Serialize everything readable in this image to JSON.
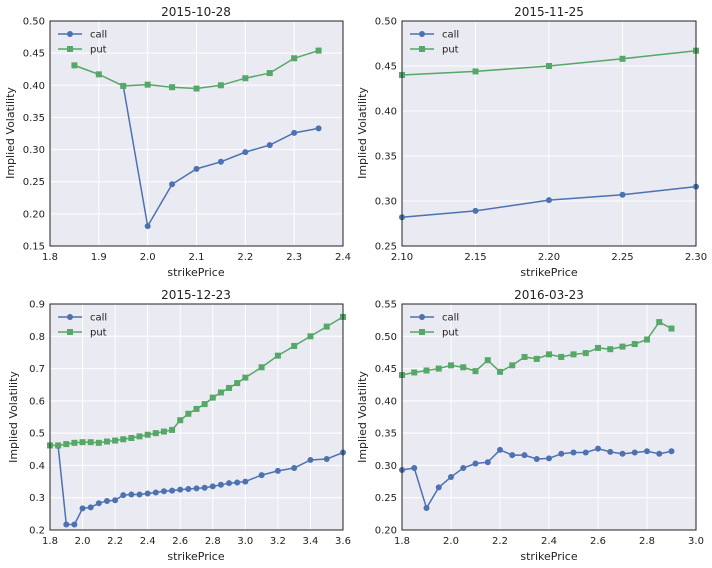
{
  "chart_data": [
    {
      "type": "line",
      "title": "2015-10-28",
      "xlabel": "strikePrice",
      "ylabel": "Implied Volatility",
      "xlim": [
        1.8,
        2.4
      ],
      "ylim": [
        0.15,
        0.5
      ],
      "xticks": [
        "1.8",
        "1.9",
        "2.0",
        "2.1",
        "2.2",
        "2.3",
        "2.4"
      ],
      "yticks": [
        "0.15",
        "0.20",
        "0.25",
        "0.30",
        "0.35",
        "0.40",
        "0.45",
        "0.50"
      ],
      "grid": true,
      "legend": "top-left",
      "series": [
        {
          "name": "call",
          "color": "#4c72b0",
          "marker": "circle",
          "x": [
            1.95,
            2.0,
            2.05,
            2.1,
            2.15,
            2.2,
            2.25,
            2.3,
            2.35
          ],
          "y": [
            0.399,
            0.181,
            0.246,
            0.27,
            0.281,
            0.296,
            0.307,
            0.326,
            0.333
          ]
        },
        {
          "name": "put",
          "color": "#55a868",
          "marker": "square",
          "x": [
            1.85,
            1.9,
            1.95,
            2.0,
            2.05,
            2.1,
            2.15,
            2.2,
            2.25,
            2.3,
            2.35
          ],
          "y": [
            0.431,
            0.417,
            0.399,
            0.401,
            0.397,
            0.395,
            0.4,
            0.411,
            0.419,
            0.442,
            0.454
          ]
        }
      ]
    },
    {
      "type": "line",
      "title": "2015-11-25",
      "xlabel": "strikePrice",
      "ylabel": "Implied Volatility",
      "xlim": [
        2.1,
        2.3
      ],
      "ylim": [
        0.25,
        0.5
      ],
      "xticks": [
        "2.10",
        "2.15",
        "2.20",
        "2.25",
        "2.30"
      ],
      "yticks": [
        "0.25",
        "0.30",
        "0.35",
        "0.40",
        "0.45",
        "0.50"
      ],
      "grid": true,
      "legend": "top-left",
      "series": [
        {
          "name": "call",
          "color": "#4c72b0",
          "marker": "circle",
          "x": [
            2.1,
            2.15,
            2.2,
            2.25,
            2.3
          ],
          "y": [
            0.282,
            0.289,
            0.301,
            0.307,
            0.316
          ]
        },
        {
          "name": "put",
          "color": "#55a868",
          "marker": "square",
          "x": [
            2.1,
            2.15,
            2.2,
            2.25,
            2.3
          ],
          "y": [
            0.44,
            0.444,
            0.45,
            0.458,
            0.467
          ]
        }
      ]
    },
    {
      "type": "line",
      "title": "2015-12-23",
      "xlabel": "strikePrice",
      "ylabel": "Implied Volatility",
      "xlim": [
        1.8,
        3.6
      ],
      "ylim": [
        0.2,
        0.9
      ],
      "xticks": [
        "1.8",
        "2.0",
        "2.2",
        "2.4",
        "2.6",
        "2.8",
        "3.0",
        "3.2",
        "3.4",
        "3.6"
      ],
      "yticks": [
        "0.2",
        "0.3",
        "0.4",
        "0.5",
        "0.6",
        "0.7",
        "0.8",
        "0.9"
      ],
      "grid": true,
      "legend": "top-left",
      "series": [
        {
          "name": "call",
          "color": "#4c72b0",
          "marker": "circle",
          "x": [
            1.85,
            1.9,
            1.95,
            2.0,
            2.05,
            2.1,
            2.15,
            2.2,
            2.25,
            2.3,
            2.35,
            2.4,
            2.45,
            2.5,
            2.55,
            2.6,
            2.65,
            2.7,
            2.75,
            2.8,
            2.85,
            2.9,
            2.95,
            3.0,
            3.1,
            3.2,
            3.3,
            3.4,
            3.5,
            3.6
          ],
          "y": [
            0.46,
            0.217,
            0.217,
            0.267,
            0.27,
            0.283,
            0.29,
            0.292,
            0.308,
            0.31,
            0.31,
            0.313,
            0.316,
            0.32,
            0.322,
            0.325,
            0.327,
            0.329,
            0.331,
            0.335,
            0.34,
            0.345,
            0.347,
            0.35,
            0.37,
            0.383,
            0.392,
            0.417,
            0.42,
            0.44
          ]
        },
        {
          "name": "put",
          "color": "#55a868",
          "marker": "square",
          "x": [
            1.8,
            1.85,
            1.9,
            1.95,
            2.0,
            2.05,
            2.1,
            2.15,
            2.2,
            2.25,
            2.3,
            2.35,
            2.4,
            2.45,
            2.5,
            2.55,
            2.6,
            2.65,
            2.7,
            2.75,
            2.8,
            2.85,
            2.9,
            2.95,
            3.0,
            3.1,
            3.2,
            3.3,
            3.4,
            3.5,
            3.6
          ],
          "y": [
            0.462,
            0.462,
            0.466,
            0.47,
            0.472,
            0.472,
            0.47,
            0.474,
            0.477,
            0.481,
            0.485,
            0.49,
            0.495,
            0.5,
            0.505,
            0.51,
            0.54,
            0.56,
            0.575,
            0.59,
            0.61,
            0.626,
            0.64,
            0.655,
            0.672,
            0.704,
            0.74,
            0.77,
            0.8,
            0.83,
            0.86
          ]
        }
      ]
    },
    {
      "type": "line",
      "title": "2016-03-23",
      "xlabel": "strikePrice",
      "ylabel": "Implied Volatility",
      "xlim": [
        1.8,
        3.0
      ],
      "ylim": [
        0.2,
        0.55
      ],
      "xticks": [
        "1.8",
        "2.0",
        "2.2",
        "2.4",
        "2.6",
        "2.8",
        "3.0"
      ],
      "yticks": [
        "0.20",
        "0.25",
        "0.30",
        "0.35",
        "0.40",
        "0.45",
        "0.50",
        "0.55"
      ],
      "grid": true,
      "legend": "top-left",
      "series": [
        {
          "name": "call",
          "color": "#4c72b0",
          "marker": "circle",
          "x": [
            1.8,
            1.85,
            1.9,
            1.95,
            2.0,
            2.05,
            2.1,
            2.15,
            2.2,
            2.25,
            2.3,
            2.35,
            2.4,
            2.45,
            2.5,
            2.55,
            2.6,
            2.65,
            2.7,
            2.75,
            2.8,
            2.85,
            2.9
          ],
          "y": [
            0.293,
            0.296,
            0.234,
            0.266,
            0.282,
            0.296,
            0.303,
            0.305,
            0.324,
            0.316,
            0.316,
            0.31,
            0.311,
            0.318,
            0.32,
            0.32,
            0.326,
            0.321,
            0.318,
            0.32,
            0.322,
            0.318,
            0.322
          ]
        },
        {
          "name": "put",
          "color": "#55a868",
          "marker": "square",
          "x": [
            1.8,
            1.85,
            1.9,
            1.95,
            2.0,
            2.05,
            2.1,
            2.15,
            2.2,
            2.25,
            2.3,
            2.35,
            2.4,
            2.45,
            2.5,
            2.55,
            2.6,
            2.65,
            2.7,
            2.75,
            2.8,
            2.85,
            2.9
          ],
          "y": [
            0.44,
            0.444,
            0.447,
            0.45,
            0.455,
            0.452,
            0.446,
            0.463,
            0.445,
            0.455,
            0.468,
            0.465,
            0.472,
            0.468,
            0.472,
            0.474,
            0.482,
            0.48,
            0.484,
            0.488,
            0.495,
            0.522,
            0.512
          ]
        }
      ]
    }
  ]
}
